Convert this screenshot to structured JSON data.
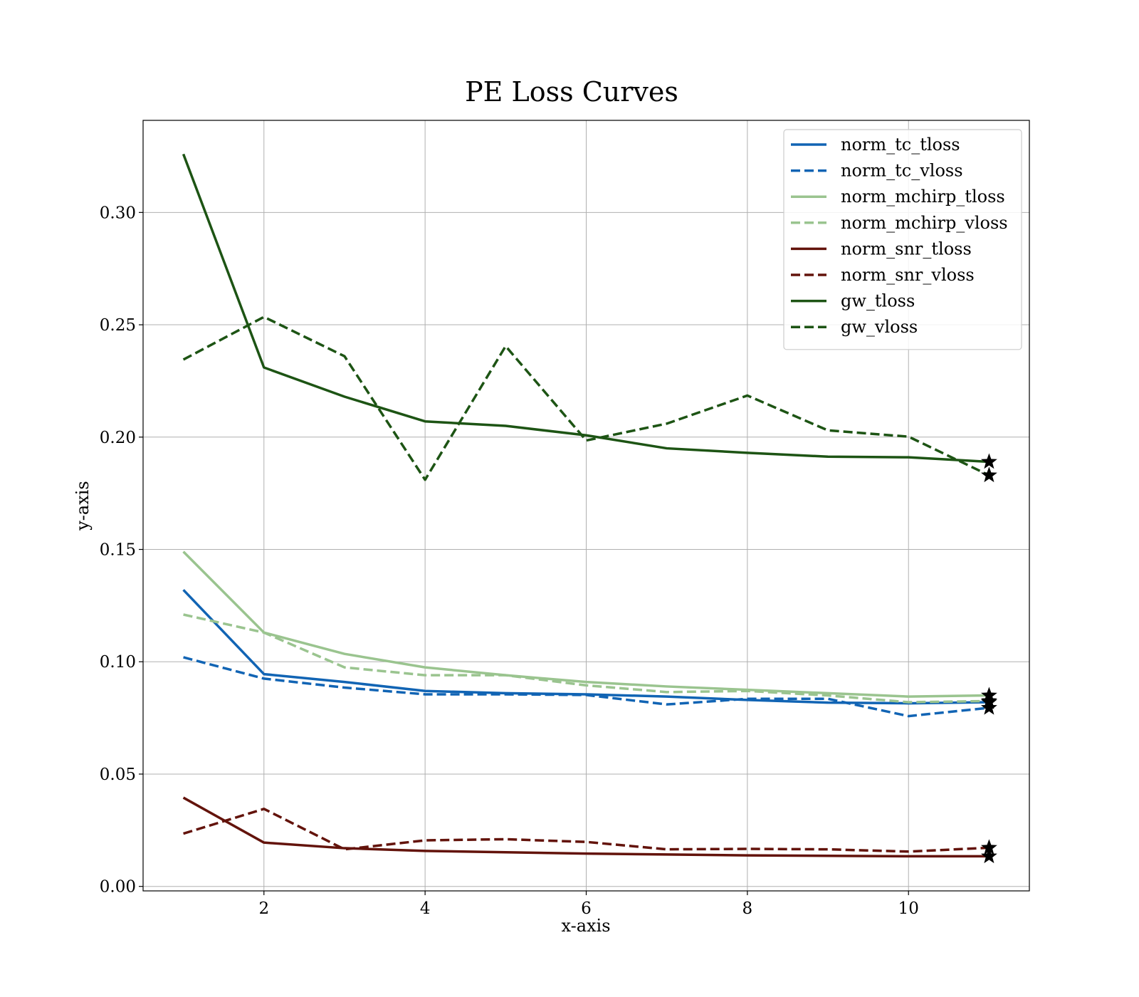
{
  "chart_data": {
    "type": "line",
    "title": "PE Loss Curves",
    "xlabel": "x-axis",
    "ylabel": "y-axis",
    "xlim": [
      0.5,
      11.5
    ],
    "ylim": [
      -0.002,
      0.341
    ],
    "xticks": [
      2,
      4,
      6,
      8,
      10
    ],
    "xtick_labels": [
      "2",
      "4",
      "6",
      "8",
      "10"
    ],
    "yticks": [
      0.0,
      0.05,
      0.1,
      0.15,
      0.2,
      0.25,
      0.3
    ],
    "ytick_labels": [
      "0.00",
      "0.05",
      "0.10",
      "0.15",
      "0.20",
      "0.25",
      "0.30"
    ],
    "grid": true,
    "legend_position": "top-right",
    "marker_on_last_point": "star",
    "marker_color": "#000000",
    "x": [
      1,
      2,
      3,
      4,
      5,
      6,
      7,
      8,
      9,
      10,
      11
    ],
    "series": [
      {
        "name": "norm_tc_tloss",
        "color": "#1164b4",
        "dash": "solid",
        "values": [
          0.132,
          0.0945,
          0.091,
          0.087,
          0.086,
          0.0855,
          0.0845,
          0.083,
          0.0818,
          0.0815,
          0.082
        ]
      },
      {
        "name": "norm_tc_vloss",
        "color": "#1164b4",
        "dash": "dashed",
        "values": [
          0.102,
          0.0925,
          0.0885,
          0.0855,
          0.0855,
          0.0852,
          0.081,
          0.0835,
          0.0835,
          0.0758,
          0.0795
        ]
      },
      {
        "name": "norm_mchirp_tloss",
        "color": "#9ac48f",
        "dash": "solid",
        "values": [
          0.149,
          0.113,
          0.1035,
          0.0975,
          0.094,
          0.091,
          0.089,
          0.0875,
          0.086,
          0.0845,
          0.085
        ]
      },
      {
        "name": "norm_mchirp_vloss",
        "color": "#9ac48f",
        "dash": "dashed",
        "values": [
          0.121,
          0.113,
          0.0975,
          0.094,
          0.094,
          0.0895,
          0.0865,
          0.087,
          0.085,
          0.082,
          0.0825
        ]
      },
      {
        "name": "norm_snr_tloss",
        "color": "#63130b",
        "dash": "solid",
        "values": [
          0.0395,
          0.0195,
          0.017,
          0.0158,
          0.0152,
          0.0146,
          0.0142,
          0.0138,
          0.0136,
          0.0134,
          0.0134
        ]
      },
      {
        "name": "norm_snr_vloss",
        "color": "#63130b",
        "dash": "dashed",
        "values": [
          0.0235,
          0.0345,
          0.0165,
          0.0205,
          0.021,
          0.0198,
          0.0165,
          0.0167,
          0.0165,
          0.0155,
          0.0172
        ]
      },
      {
        "name": "gw_tloss",
        "color": "#1d5414",
        "dash": "solid",
        "values": [
          0.326,
          0.231,
          0.218,
          0.207,
          0.205,
          0.2008,
          0.195,
          0.193,
          0.1913,
          0.191,
          0.189
        ]
      },
      {
        "name": "gw_vloss",
        "color": "#1d5414",
        "dash": "dashed",
        "values": [
          0.2345,
          0.2535,
          0.236,
          0.181,
          0.2405,
          0.1985,
          0.206,
          0.2185,
          0.203,
          0.2002,
          0.183
        ]
      }
    ]
  }
}
